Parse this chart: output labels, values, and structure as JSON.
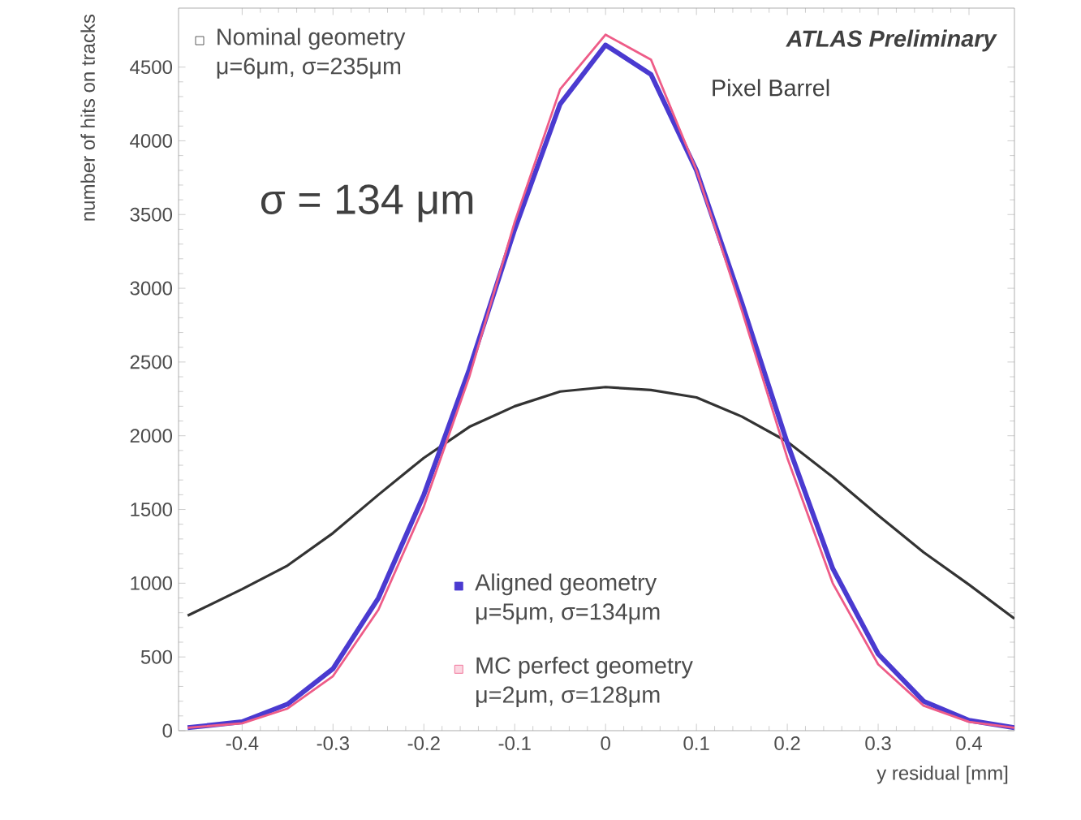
{
  "chart_data": {
    "type": "line",
    "xlabel": "y residual [mm]",
    "ylabel": "number of hits on tracks",
    "xlim": [
      -0.47,
      0.45
    ],
    "ylim": [
      0,
      4900
    ],
    "xticks": [
      -0.4,
      -0.3,
      -0.2,
      -0.1,
      0,
      0.1,
      0.2,
      0.3,
      0.4
    ],
    "yticks": [
      0,
      500,
      1000,
      1500,
      2000,
      2500,
      3000,
      3500,
      4000,
      4500
    ],
    "x": [
      -0.46,
      -0.4,
      -0.35,
      -0.3,
      -0.25,
      -0.2,
      -0.15,
      -0.1,
      -0.05,
      0,
      0.05,
      0.1,
      0.15,
      0.2,
      0.25,
      0.3,
      0.35,
      0.4,
      0.45
    ],
    "legend": "top left",
    "grid": false,
    "series": [
      {
        "name": "Nominal geometry",
        "color": "#333333",
        "values": [
          780,
          960,
          1120,
          1340,
          1600,
          1850,
          2060,
          2200,
          2300,
          2330,
          2310,
          2260,
          2130,
          1960,
          1720,
          1460,
          1210,
          990,
          760
        ]
      },
      {
        "name": "Aligned geometry",
        "color": "#4a3ad0",
        "values": [
          20,
          60,
          180,
          420,
          900,
          1600,
          2450,
          3400,
          4250,
          4650,
          4450,
          3800,
          2900,
          1950,
          1100,
          520,
          200,
          70,
          20
        ]
      },
      {
        "name": "MC perfect geometry",
        "color": "#ee5c88",
        "values": [
          20,
          50,
          150,
          370,
          820,
          1520,
          2400,
          3450,
          4350,
          4720,
          4550,
          3800,
          2850,
          1850,
          1000,
          450,
          170,
          60,
          20
        ]
      }
    ],
    "annotations": [
      "ATLAS Preliminary",
      "Pixel Barrel",
      "σ = 134 μm",
      "μ=6μm, σ=235μm",
      "μ=5μm, σ=134μm",
      "μ=2μm, σ=128μm"
    ]
  }
}
